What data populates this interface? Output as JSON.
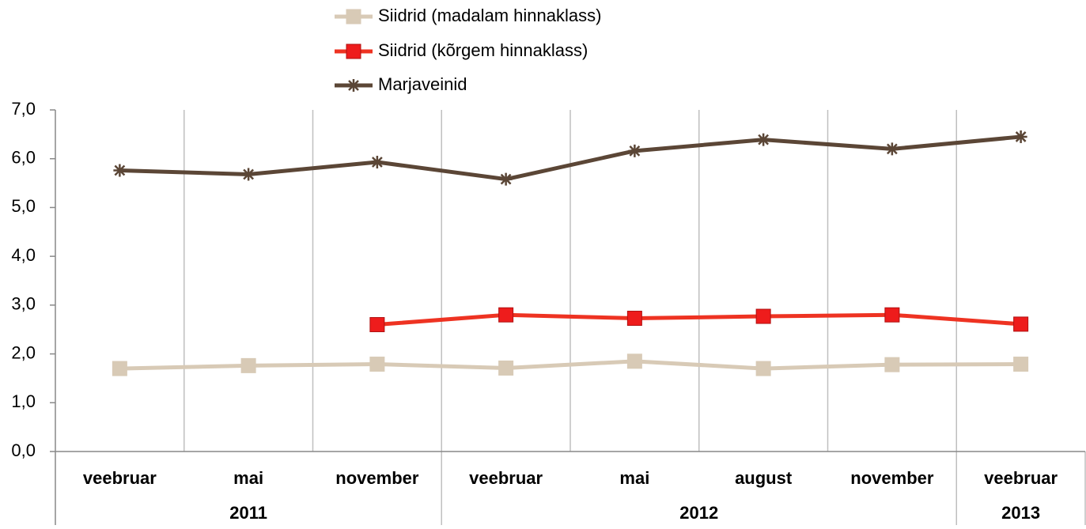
{
  "chart_data": {
    "type": "line",
    "groups": [
      {
        "name": "2011",
        "categories": [
          "veebruar",
          "mai",
          "november"
        ]
      },
      {
        "name": "2012",
        "categories": [
          "veebruar",
          "mai",
          "august",
          "november"
        ]
      },
      {
        "name": "2013",
        "categories": [
          "veebruar"
        ]
      }
    ],
    "series": [
      {
        "name": "Siidrid (madalam hinnaklass)",
        "color": "#d8cab6",
        "marker": "square",
        "values": [
          1.7,
          1.76,
          1.79,
          1.71,
          1.85,
          1.7,
          1.78,
          1.79
        ]
      },
      {
        "name": "Siidrid (kõrgem hinnaklass)",
        "color": "#ee3322",
        "marker": "square",
        "values": [
          null,
          null,
          2.6,
          2.8,
          2.73,
          2.77,
          2.8,
          2.61
        ]
      },
      {
        "name": "Marjaveinid",
        "color": "#5b4636",
        "marker": "asterisk",
        "values": [
          5.76,
          5.68,
          5.93,
          5.58,
          6.16,
          6.39,
          6.2,
          6.45
        ]
      }
    ],
    "ylim": [
      0,
      7
    ],
    "yticks": [
      {
        "value": 0,
        "label": "0,0"
      },
      {
        "value": 1,
        "label": "1,0"
      },
      {
        "value": 2,
        "label": "2,0"
      },
      {
        "value": 3,
        "label": "3,0"
      },
      {
        "value": 4,
        "label": "4,0"
      },
      {
        "value": 5,
        "label": "5,0"
      },
      {
        "value": 6,
        "label": "6,0"
      },
      {
        "value": 7,
        "label": "7,0"
      }
    ],
    "vertical_grid": true,
    "legend": "top"
  }
}
